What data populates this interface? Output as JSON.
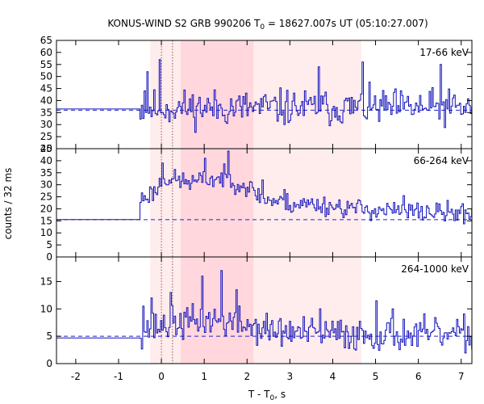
{
  "chart_data": {
    "type": "line",
    "title_prefix": "KONUS-WIND S2 GRB 990206 T",
    "title_sub": "0",
    "title_suffix": " = 18627.007s UT (05:10:27.007)",
    "xlabel_prefix": "T - T",
    "xlabel_sub": "0",
    "xlabel_suffix": ", s",
    "ylabel": "counts / 32 ms",
    "xlim": [
      -2.45,
      7.25
    ],
    "x_ticks": [
      -2,
      -1,
      0,
      1,
      2,
      3,
      4,
      5,
      6,
      7
    ],
    "x_tick_labels": [
      "-2",
      "-1",
      "0",
      "1",
      "2",
      "3",
      "4",
      "5",
      "6",
      "7"
    ],
    "bin_width_s": 0.032,
    "grid": false,
    "shaded_intervals": [
      {
        "start": -0.26,
        "end": 4.67,
        "color": "#ffecec"
      },
      {
        "start": 0.45,
        "end": 2.15,
        "color": "#ffd7dd"
      }
    ],
    "vertical_markers": [
      0.0,
      0.26
    ],
    "panels": [
      {
        "band": "17-66 keV",
        "ylim": [
          20,
          65
        ],
        "y_ticks": [
          20,
          25,
          30,
          35,
          40,
          45,
          50,
          55,
          60,
          65
        ],
        "y_tick_labels": [
          "20",
          "25",
          "30",
          "35",
          "40",
          "45",
          "50",
          "55",
          "60",
          "65"
        ],
        "background_level": 36,
        "pre_trigger_level": 36.5,
        "curve_start": -0.5,
        "rate_model": [
          [
            -0.5,
            37
          ],
          [
            7.25,
            37
          ]
        ],
        "noise_amplitude": 6.5,
        "spikes": [
          [
            -0.4,
            44
          ],
          [
            -0.35,
            52
          ],
          [
            -0.05,
            57
          ],
          [
            3.65,
            54
          ],
          [
            4.7,
            56
          ],
          [
            6.5,
            55
          ]
        ],
        "seed": 11
      },
      {
        "band": "66-264 keV",
        "ylim": [
          0,
          45
        ],
        "y_ticks": [
          0,
          5,
          10,
          15,
          20,
          25,
          30,
          35,
          40,
          45
        ],
        "y_tick_labels": [
          "0",
          "5",
          "10",
          "15",
          "20",
          "25",
          "30",
          "35",
          "40",
          "45"
        ],
        "background_level": 15.5,
        "pre_trigger_level": 15.5,
        "curve_start": -0.5,
        "rate_model": [
          [
            -0.5,
            24
          ],
          [
            -0.1,
            28
          ],
          [
            0.0,
            33
          ],
          [
            0.3,
            32
          ],
          [
            0.7,
            31
          ],
          [
            1.1,
            32
          ],
          [
            1.5,
            33
          ],
          [
            2.0,
            29
          ],
          [
            2.4,
            24
          ],
          [
            3.0,
            22
          ],
          [
            3.5,
            22
          ],
          [
            4.0,
            21
          ],
          [
            4.6,
            20
          ],
          [
            5.5,
            19
          ],
          [
            6.5,
            18.5
          ],
          [
            7.25,
            18
          ]
        ],
        "noise_amplitude": 3.6,
        "spikes": [
          [
            0.0,
            39
          ],
          [
            1.0,
            41
          ],
          [
            1.55,
            44
          ],
          [
            2.35,
            32
          ],
          [
            2.85,
            28
          ],
          [
            5.65,
            25.5
          ]
        ],
        "seed": 23
      },
      {
        "band": "264-1000 keV",
        "ylim": [
          0,
          19.5
        ],
        "y_ticks": [
          0,
          5,
          10,
          15
        ],
        "y_tick_labels": [
          "0",
          "5",
          "10",
          "15"
        ],
        "background_level": 5.0,
        "pre_trigger_level": 4.7,
        "curve_start": -0.5,
        "rate_model": [
          [
            -0.5,
            6
          ],
          [
            0.0,
            7
          ],
          [
            0.5,
            7.5
          ],
          [
            1.3,
            8
          ],
          [
            2.0,
            7
          ],
          [
            2.5,
            6
          ],
          [
            3.5,
            5.5
          ],
          [
            5.0,
            5.3
          ],
          [
            7.25,
            5.2
          ]
        ],
        "noise_amplitude": 2.6,
        "spikes": [
          [
            -0.45,
            10.5
          ],
          [
            -0.25,
            12
          ],
          [
            0.2,
            13
          ],
          [
            0.95,
            16
          ],
          [
            1.4,
            17
          ],
          [
            1.75,
            13.5
          ],
          [
            3.7,
            10
          ],
          [
            5.0,
            11.5
          ],
          [
            5.4,
            10
          ]
        ],
        "seed": 37
      }
    ]
  }
}
